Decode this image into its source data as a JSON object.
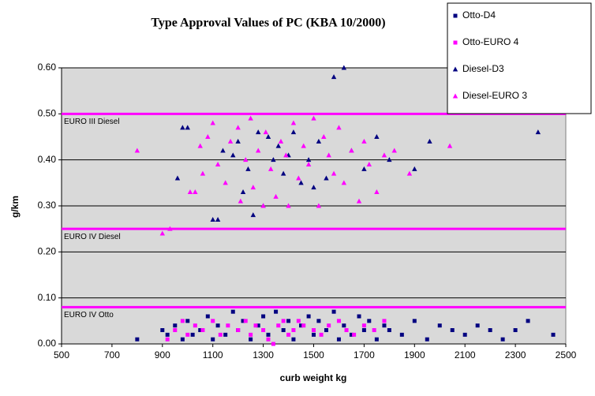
{
  "chart_data": {
    "type": "scatter",
    "title": "Type Approval Values of PC (KBA 10/2000)",
    "x_label": "curb weight kg",
    "y_label": "g/km",
    "xlim": [
      500,
      2500
    ],
    "xticks": [
      500,
      700,
      900,
      1100,
      1300,
      1500,
      1700,
      1900,
      2100,
      2300,
      2500
    ],
    "ylim": [
      0,
      0.6
    ],
    "yticks": [
      {
        "value": 0,
        "label": "0.00"
      },
      {
        "value": 0.1,
        "label": "0.10"
      },
      {
        "value": 0.2,
        "label": "0.20"
      },
      {
        "value": 0.3,
        "label": "0.30"
      },
      {
        "value": 0.4,
        "label": "0.40"
      },
      {
        "value": 0.5,
        "label": "0.50"
      },
      {
        "value": 0.6,
        "label": "0.60"
      }
    ],
    "grid": true,
    "legend": "top-right",
    "reference_lines": [
      {
        "value": 0.5,
        "label": "EURO III Diesel",
        "color": "#ff00ff"
      },
      {
        "value": 0.25,
        "label": "EURO IV Diesel",
        "color": "#ff00ff"
      },
      {
        "value": 0.08,
        "label": "EURO IV Otto",
        "color": "#ff00ff"
      }
    ],
    "series": [
      {
        "name": "Otto-D4",
        "color": "#000080",
        "marker": "square",
        "x": [
          800,
          900,
          920,
          950,
          980,
          1000,
          1020,
          1050,
          1080,
          1100,
          1120,
          1150,
          1180,
          1200,
          1220,
          1250,
          1280,
          1300,
          1320,
          1350,
          1380,
          1400,
          1420,
          1450,
          1480,
          1500,
          1520,
          1550,
          1580,
          1600,
          1620,
          1650,
          1680,
          1700,
          1720,
          1750,
          1780,
          1800,
          1850,
          1900,
          1950,
          2000,
          2050,
          2100,
          2150,
          2200,
          2250,
          2300,
          2350,
          2450
        ],
        "values": [
          0.01,
          0.03,
          0.02,
          0.04,
          0.01,
          0.05,
          0.02,
          0.03,
          0.06,
          0.01,
          0.04,
          0.02,
          0.07,
          0.03,
          0.05,
          0.01,
          0.04,
          0.06,
          0.02,
          0.07,
          0.03,
          0.05,
          0.01,
          0.04,
          0.06,
          0.02,
          0.05,
          0.03,
          0.07,
          0.01,
          0.04,
          0.02,
          0.06,
          0.03,
          0.05,
          0.01,
          0.04,
          0.03,
          0.02,
          0.05,
          0.01,
          0.04,
          0.03,
          0.02,
          0.04,
          0.03,
          0.01,
          0.03,
          0.05,
          0.02
        ]
      },
      {
        "name": "Otto-EURO 4",
        "color": "#ff00ff",
        "marker": "square",
        "x": [
          920,
          950,
          980,
          1000,
          1030,
          1060,
          1100,
          1130,
          1160,
          1200,
          1230,
          1250,
          1270,
          1300,
          1320,
          1340,
          1360,
          1380,
          1400,
          1420,
          1440,
          1460,
          1500,
          1530,
          1560,
          1600,
          1630,
          1660,
          1700,
          1740,
          1780
        ],
        "values": [
          0.01,
          0.03,
          0.05,
          0.02,
          0.04,
          0.03,
          0.05,
          0.02,
          0.04,
          0.03,
          0.05,
          0.02,
          0.04,
          0.03,
          0.01,
          0,
          0.04,
          0.05,
          0.02,
          0.03,
          0.05,
          0.04,
          0.03,
          0.02,
          0.04,
          0.05,
          0.03,
          0.02,
          0.04,
          0.03,
          0.05
        ]
      },
      {
        "name": "Diesel-D3",
        "color": "#000080",
        "marker": "triangle",
        "x": [
          960,
          980,
          1000,
          1100,
          1120,
          1140,
          1180,
          1200,
          1220,
          1240,
          1260,
          1280,
          1300,
          1320,
          1340,
          1360,
          1380,
          1400,
          1420,
          1450,
          1480,
          1500,
          1520,
          1550,
          1580,
          1620,
          1650,
          1700,
          1750,
          1800,
          1900,
          1960,
          2390
        ],
        "values": [
          0.36,
          0.47,
          0.47,
          0.27,
          0.27,
          0.42,
          0.41,
          0.44,
          0.33,
          0.38,
          0.28,
          0.46,
          0.3,
          0.45,
          0.4,
          0.43,
          0.37,
          0.41,
          0.46,
          0.35,
          0.4,
          0.34,
          0.44,
          0.36,
          0.58,
          0.6,
          0.42,
          0.38,
          0.45,
          0.4,
          0.38,
          0.44,
          0.46
        ]
      },
      {
        "name": "Diesel-EURO 3",
        "color": "#ff00ff",
        "marker": "triangle",
        "x": [
          800,
          900,
          930,
          1010,
          1030,
          1050,
          1060,
          1080,
          1100,
          1120,
          1150,
          1170,
          1200,
          1210,
          1230,
          1250,
          1260,
          1280,
          1300,
          1310,
          1330,
          1350,
          1370,
          1390,
          1400,
          1420,
          1440,
          1460,
          1480,
          1500,
          1520,
          1540,
          1560,
          1580,
          1600,
          1620,
          1650,
          1680,
          1700,
          1720,
          1750,
          1780,
          1820,
          1880,
          2040
        ],
        "values": [
          0.42,
          0.24,
          0.25,
          0.33,
          0.33,
          0.43,
          0.37,
          0.45,
          0.48,
          0.39,
          0.35,
          0.44,
          0.47,
          0.31,
          0.4,
          0.49,
          0.34,
          0.42,
          0.3,
          0.46,
          0.38,
          0.32,
          0.44,
          0.41,
          0.3,
          0.48,
          0.36,
          0.43,
          0.39,
          0.49,
          0.3,
          0.45,
          0.41,
          0.37,
          0.47,
          0.35,
          0.42,
          0.31,
          0.44,
          0.39,
          0.33,
          0.41,
          0.42,
          0.37,
          0.43
        ]
      }
    ]
  }
}
